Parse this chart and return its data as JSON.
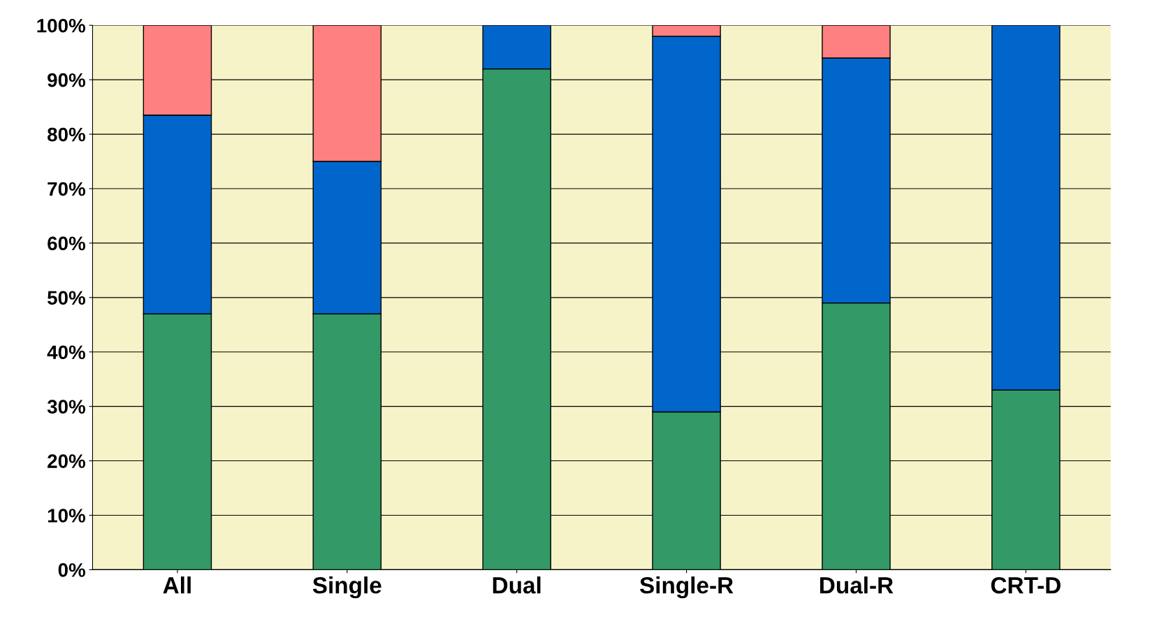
{
  "chart_data": {
    "type": "bar",
    "stacked": true,
    "categories": [
      "All",
      "Single",
      "Dual",
      "Single-R",
      "Dual-R",
      "CRT-D"
    ],
    "series": [
      {
        "color": "#339966",
        "values": [
          47,
          47,
          92,
          29,
          49,
          33
        ]
      },
      {
        "color": "#0066cc",
        "values": [
          36.5,
          28,
          8,
          69,
          45,
          67
        ]
      },
      {
        "color": "#ff8080",
        "values": [
          16.5,
          25,
          null,
          2,
          6,
          null
        ]
      }
    ],
    "ylim": [
      0,
      100
    ],
    "yticks": [
      {
        "value": 0,
        "label": "0%"
      },
      {
        "value": 10,
        "label": "10%"
      },
      {
        "value": 20,
        "label": "20%"
      },
      {
        "value": 30,
        "label": "30%"
      },
      {
        "value": 40,
        "label": "40%"
      },
      {
        "value": 50,
        "label": "50%"
      },
      {
        "value": 60,
        "label": "60%"
      },
      {
        "value": 70,
        "label": "70%"
      },
      {
        "value": 80,
        "label": "80%"
      },
      {
        "value": 90,
        "label": "90%"
      },
      {
        "value": 100,
        "label": "100%"
      }
    ],
    "grid": "y"
  }
}
